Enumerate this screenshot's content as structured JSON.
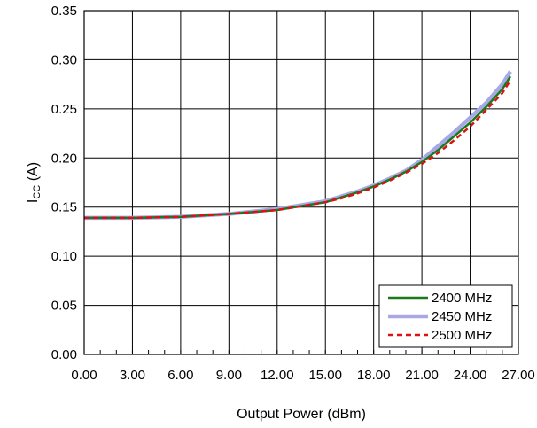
{
  "chart_data": {
    "type": "line",
    "title": "",
    "xlabel": "Output Power (dBm)",
    "ylabel": "I",
    "ylabel_subscript": "CC",
    "ylabel_suffix": " (A)",
    "xlim": [
      0,
      27
    ],
    "ylim": [
      0,
      0.35
    ],
    "x_ticks": [
      "0.00",
      "3.00",
      "6.00",
      "9.00",
      "12.00",
      "15.00",
      "18.00",
      "21.00",
      "24.00",
      "27.00"
    ],
    "y_ticks": [
      "0.00",
      "0.05",
      "0.10",
      "0.15",
      "0.20",
      "0.25",
      "0.30",
      "0.35"
    ],
    "x_tick_values": [
      0,
      3,
      6,
      9,
      12,
      15,
      18,
      21,
      24,
      27
    ],
    "y_tick_values": [
      0,
      0.05,
      0.1,
      0.15,
      0.2,
      0.25,
      0.3,
      0.35
    ],
    "grid": true,
    "legend_position": "bottom-right",
    "series": [
      {
        "name": "2400 MHz",
        "color": "#1a7a1a",
        "dash": "solid",
        "x": [
          0,
          3,
          6,
          9,
          12,
          15,
          16,
          17,
          18,
          19,
          20,
          21,
          22,
          23,
          24,
          25,
          26,
          26.5
        ],
        "y": [
          0.139,
          0.139,
          0.14,
          0.143,
          0.147,
          0.155,
          0.16,
          0.165,
          0.171,
          0.178,
          0.186,
          0.196,
          0.208,
          0.222,
          0.236,
          0.252,
          0.27,
          0.283
        ]
      },
      {
        "name": "2450 MHz",
        "color": "#a8a8e8",
        "dash": "solid",
        "x": [
          0,
          3,
          6,
          9,
          12,
          15,
          16,
          17,
          18,
          19,
          20,
          21,
          22,
          23,
          24,
          25,
          26,
          26.5
        ],
        "y": [
          0.139,
          0.139,
          0.14,
          0.143,
          0.148,
          0.156,
          0.161,
          0.166,
          0.172,
          0.179,
          0.187,
          0.198,
          0.212,
          0.226,
          0.241,
          0.256,
          0.275,
          0.288
        ]
      },
      {
        "name": "2500 MHz",
        "color": "#dd1111",
        "dash": "dashed",
        "x": [
          0,
          3,
          6,
          9,
          12,
          15,
          16,
          17,
          18,
          19,
          20,
          21,
          22,
          23,
          24,
          25,
          26,
          26.5
        ],
        "y": [
          0.139,
          0.139,
          0.14,
          0.143,
          0.147,
          0.155,
          0.159,
          0.164,
          0.17,
          0.177,
          0.185,
          0.194,
          0.205,
          0.218,
          0.232,
          0.249,
          0.266,
          0.279
        ]
      }
    ]
  }
}
